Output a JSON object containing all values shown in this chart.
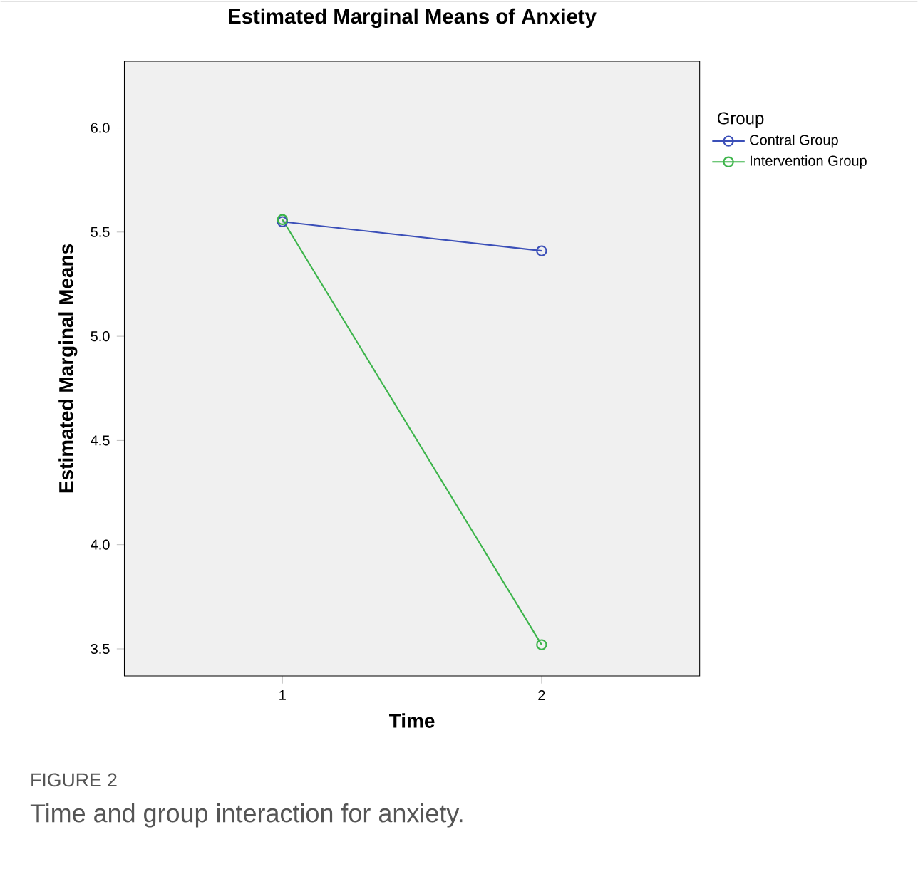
{
  "chart_data": {
    "type": "line",
    "title": "Estimated Marginal Means of Anxiety",
    "xlabel": "Time",
    "ylabel": "Estimated Marginal Means",
    "legend_title": "Group",
    "x": [
      1,
      2
    ],
    "series": [
      {
        "name": "Contral Group",
        "color": "#3b4fb8",
        "values": [
          5.55,
          5.41
        ]
      },
      {
        "name": "Intervention Group",
        "color": "#3cb44a",
        "values": [
          5.56,
          3.52
        ]
      }
    ],
    "xlim": [
      0.39,
      2.61
    ],
    "xticks": [
      1,
      2
    ],
    "ylim": [
      3.37,
      6.32
    ],
    "yticks": [
      {
        "value": 3.5,
        "label": "3.5"
      },
      {
        "value": 4,
        "label": "4.0"
      },
      {
        "value": 4.5,
        "label": "4.5"
      },
      {
        "value": 5,
        "label": "5.0"
      },
      {
        "value": 5.5,
        "label": "5.5"
      },
      {
        "value": 6,
        "label": "6.0"
      }
    ],
    "marker": "circle",
    "legend": "top right",
    "annotations": [
      "FIGURE 2",
      "Time and group interaction for anxiety."
    ]
  }
}
